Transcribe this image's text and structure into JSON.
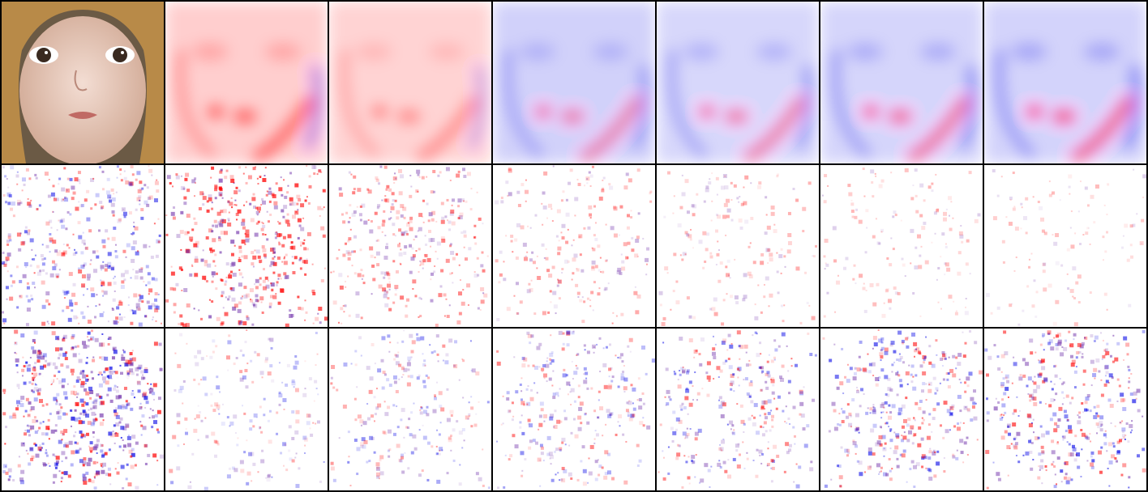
{
  "figure": {
    "rows": [
      {
        "name": "row-1",
        "tiles": [
          {
            "kind": "photo"
          },
          {
            "kind": "heatmap",
            "tone": "red",
            "intensity": 0.85
          },
          {
            "kind": "heatmap",
            "tone": "red-light",
            "intensity": 0.55
          },
          {
            "kind": "heatmap",
            "tone": "mixed",
            "intensity": 0.65
          },
          {
            "kind": "heatmap",
            "tone": "blue",
            "intensity": 0.7
          },
          {
            "kind": "heatmap",
            "tone": "blue",
            "intensity": 0.8
          },
          {
            "kind": "heatmap",
            "tone": "blue",
            "intensity": 0.9
          }
        ]
      },
      {
        "name": "row-2",
        "tiles": [
          {
            "kind": "noise",
            "tone": "purple",
            "intensity": 0.45
          },
          {
            "kind": "noise",
            "tone": "red",
            "intensity": 0.7
          },
          {
            "kind": "noise",
            "tone": "red",
            "intensity": 0.4
          },
          {
            "kind": "noise",
            "tone": "red",
            "intensity": 0.28
          },
          {
            "kind": "noise",
            "tone": "red",
            "intensity": 0.16
          },
          {
            "kind": "noise",
            "tone": "red",
            "intensity": 0.1
          },
          {
            "kind": "noise",
            "tone": "red",
            "intensity": 0.06
          }
        ]
      },
      {
        "name": "row-3",
        "tiles": [
          {
            "kind": "noise-face",
            "tone": "purple",
            "intensity": 0.85
          },
          {
            "kind": "noise-face",
            "tone": "purple",
            "intensity": 0.18
          },
          {
            "kind": "noise-face",
            "tone": "purple",
            "intensity": 0.28
          },
          {
            "kind": "noise-face",
            "tone": "purple",
            "intensity": 0.35
          },
          {
            "kind": "noise-face",
            "tone": "purple",
            "intensity": 0.42
          },
          {
            "kind": "noise-face",
            "tone": "purple",
            "intensity": 0.5
          },
          {
            "kind": "noise-face",
            "tone": "purple",
            "intensity": 0.55
          }
        ]
      }
    ],
    "colors": {
      "separator": "#000000",
      "red": "#ff0000",
      "blue": "#0000e6",
      "purple": "#7a3fb0",
      "skin": "#e9c3b4",
      "hair": "#b88a48"
    }
  }
}
